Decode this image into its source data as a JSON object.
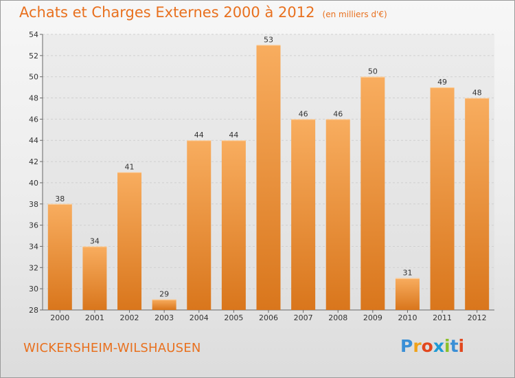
{
  "title": "Achats et Charges Externes 2000 à 2012",
  "unit_note": "(en milliers d'€)",
  "commune": "WICKERSHEIM-WILSHAUSEN",
  "brand": {
    "letters": [
      "P",
      "r",
      "o",
      "x",
      "i",
      "t",
      "i"
    ],
    "colors": [
      "#3a8fd6",
      "#f0a21a",
      "#e2471e",
      "#1f9ad4",
      "#8bc02a",
      "#3a8fd6",
      "#e2471e"
    ]
  },
  "colors": {
    "bar_light": "#f8ad5f",
    "bar_dark": "#d9761c",
    "accent": "#e8701e"
  },
  "chart_data": {
    "type": "bar",
    "title": "Achats et Charges Externes 2000 à 2012",
    "subtitle": "(en milliers d'€)",
    "categories": [
      "2000",
      "2001",
      "2002",
      "2003",
      "2004",
      "2005",
      "2006",
      "2007",
      "2008",
      "2009",
      "2010",
      "2011",
      "2012"
    ],
    "values": [
      38,
      34,
      41,
      29,
      44,
      44,
      53,
      46,
      46,
      50,
      31,
      49,
      48
    ],
    "ylim": [
      28,
      54
    ],
    "yticks": [
      28,
      30,
      32,
      34,
      36,
      38,
      40,
      42,
      44,
      46,
      48,
      50,
      52,
      54
    ],
    "grid": true
  }
}
